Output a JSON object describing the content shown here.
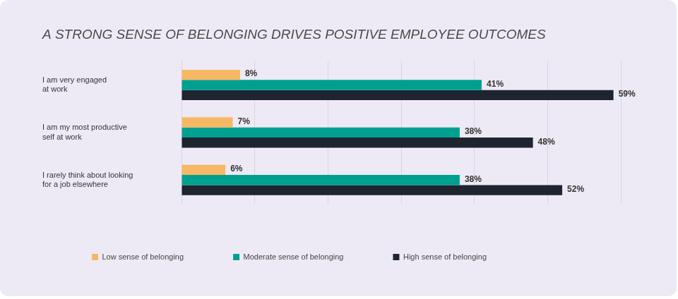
{
  "chart_data": {
    "type": "bar",
    "orientation": "horizontal",
    "title": "A STRONG SENSE OF BELONGING DRIVES POSITIVE EMPLOYEE OUTCOMES",
    "categories": [
      [
        "I am very engaged",
        "at work"
      ],
      [
        "I am my most productive",
        "self at work"
      ],
      [
        "I rarely think about looking",
        "for a job elsewhere"
      ]
    ],
    "series": [
      {
        "name": "Low sense of belonging",
        "color": "#f7b866",
        "values": [
          8,
          7,
          6
        ],
        "value_labels": [
          "8%",
          "7%",
          "6%"
        ]
      },
      {
        "name": "Moderate sense of belonging",
        "color": "#00a091",
        "values": [
          41,
          38,
          38
        ],
        "value_labels": [
          "41%",
          "38%",
          "38%"
        ]
      },
      {
        "name": "High sense of belonging",
        "color": "#1e2531",
        "values": [
          59,
          48,
          52
        ],
        "value_labels": [
          "59%",
          "48%",
          "52%"
        ]
      }
    ],
    "xlim": [
      0,
      60
    ],
    "xticks": [
      0,
      10,
      20,
      30,
      40,
      50,
      60
    ],
    "grid": true,
    "legend": "bottom",
    "data_labels": true,
    "tick_labels": "y"
  }
}
